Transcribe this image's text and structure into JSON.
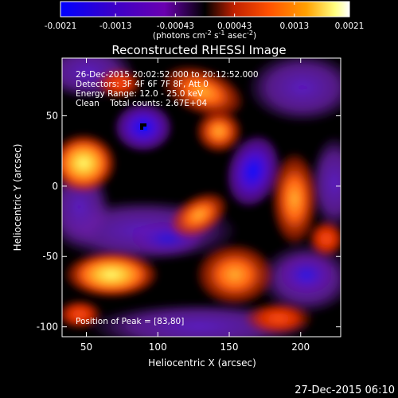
{
  "colorbar": {
    "ticks": [
      "-0.0021",
      "-0.0013",
      "-0.00043",
      "0.00043",
      "0.0013",
      "0.0021"
    ],
    "tick_values": [
      -0.0021,
      -0.0013,
      -0.00043,
      0.00043,
      0.0013,
      0.0021
    ],
    "range": [
      -0.0021,
      0.0021
    ],
    "unit_text": "(photons cm",
    "unit_exp1": "-2",
    "unit_mid": " s",
    "unit_exp2": "-1",
    "unit_mid2": " asec",
    "unit_exp3": "-2",
    "unit_end": ")",
    "colors": [
      "#0000ff",
      "#3a00c8",
      "#6a00b0",
      "#000000",
      "#c02000",
      "#ff5000",
      "#ffa000",
      "#ffff80",
      "#ffffff"
    ]
  },
  "title": "Reconstructed RHESSI Image",
  "info": {
    "line1": "26-Dec-2015 20:02:52.000 to 20:12:52.000",
    "line2": "Detectors: 3F 4F 6F 7F 8F, Att 0",
    "line3": "Energy Range: 12.0 - 25.0 keV",
    "line4": "Clean    Total counts: 2.67E+04"
  },
  "peak_label": "Position of Peak = [83,80]",
  "xaxis": {
    "label": "Heliocentric X (arcsec)",
    "ticks": [
      "50",
      "100",
      "150",
      "200"
    ],
    "tick_values": [
      50,
      100,
      150,
      200
    ],
    "range": [
      33,
      228
    ]
  },
  "yaxis": {
    "label": "Heliocentric Y (arcsec)",
    "ticks": [
      "50",
      "0",
      "-50",
      "-100"
    ],
    "tick_values": [
      50,
      0,
      -50,
      -100
    ],
    "range": [
      -107,
      91
    ]
  },
  "footer_date": "27-Dec-2015 06:10",
  "heatmap_type": "heatmap"
}
